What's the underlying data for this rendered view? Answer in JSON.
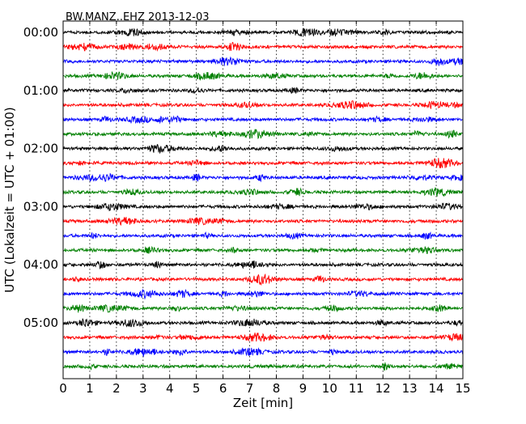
{
  "chart_data": {
    "type": "line",
    "title": "BW.MANZ..EHZ 2013-12-03",
    "xlabel": "Zeit  [min]",
    "ylabel": "UTC (Lokalzeit = UTC + 01:00)",
    "xlim": [
      0,
      15
    ],
    "x_ticks": [
      "0",
      "1",
      "2",
      "3",
      "4",
      "5",
      "6",
      "7",
      "8",
      "9",
      "10",
      "11",
      "12",
      "13",
      "14",
      "15"
    ],
    "y_tick_labels": [
      "00:00",
      "01:00",
      "02:00",
      "03:00",
      "04:00",
      "05:00"
    ],
    "grid": "vertical dotted lines at each minute",
    "color_cycle": [
      "#000000",
      "#ff0000",
      "#0000ff",
      "#008000"
    ],
    "traces": [
      {
        "start": "00:00",
        "color": "#000000"
      },
      {
        "start": "00:15",
        "color": "#ff0000"
      },
      {
        "start": "00:30",
        "color": "#0000ff"
      },
      {
        "start": "00:45",
        "color": "#008000"
      },
      {
        "start": "01:00",
        "color": "#000000"
      },
      {
        "start": "01:15",
        "color": "#ff0000"
      },
      {
        "start": "01:30",
        "color": "#0000ff"
      },
      {
        "start": "01:45",
        "color": "#008000"
      },
      {
        "start": "02:00",
        "color": "#000000"
      },
      {
        "start": "02:15",
        "color": "#ff0000"
      },
      {
        "start": "02:30",
        "color": "#0000ff"
      },
      {
        "start": "02:45",
        "color": "#008000"
      },
      {
        "start": "03:00",
        "color": "#000000"
      },
      {
        "start": "03:15",
        "color": "#ff0000"
      },
      {
        "start": "03:30",
        "color": "#0000ff"
      },
      {
        "start": "03:45",
        "color": "#008000"
      },
      {
        "start": "04:00",
        "color": "#000000"
      },
      {
        "start": "04:15",
        "color": "#ff0000"
      },
      {
        "start": "04:30",
        "color": "#0000ff"
      },
      {
        "start": "04:45",
        "color": "#008000"
      },
      {
        "start": "05:00",
        "color": "#000000"
      },
      {
        "start": "05:15",
        "color": "#ff0000"
      },
      {
        "start": "05:30",
        "color": "#0000ff"
      },
      {
        "start": "05:45",
        "color": "#008000"
      }
    ]
  }
}
